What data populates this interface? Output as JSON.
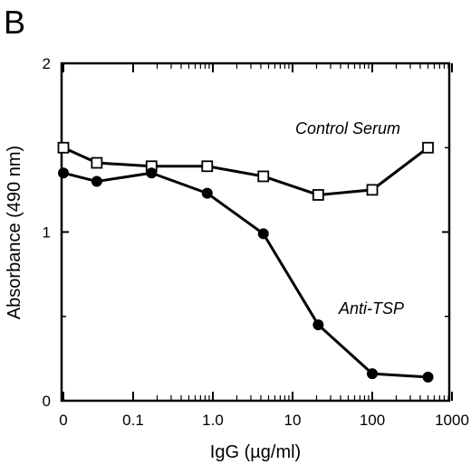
{
  "panel_label": "B",
  "chart_data": {
    "type": "line",
    "xlabel": "IgG (µg/ml)",
    "ylabel": "Absorbance (490 nm)",
    "x_scale": "log",
    "x_tick_labels": [
      "0",
      "0.1",
      "1.0",
      "10",
      "100",
      "1000"
    ],
    "y_tick_labels": [
      "0",
      "1",
      "2"
    ],
    "ylim": [
      0,
      2
    ],
    "grid": false,
    "legend": "none",
    "x": [
      "0",
      "0.035",
      "0.17",
      "0.85",
      "4.3",
      "21",
      "100",
      "500"
    ],
    "series": [
      {
        "name": "Control Serum",
        "marker": "open-square",
        "values": [
          1.5,
          1.41,
          1.39,
          1.39,
          1.33,
          1.22,
          1.25,
          1.5
        ]
      },
      {
        "name": "Anti-TSP",
        "marker": "filled-circle",
        "values": [
          1.35,
          1.3,
          1.35,
          1.23,
          0.99,
          0.45,
          0.16,
          0.14
        ]
      }
    ]
  }
}
